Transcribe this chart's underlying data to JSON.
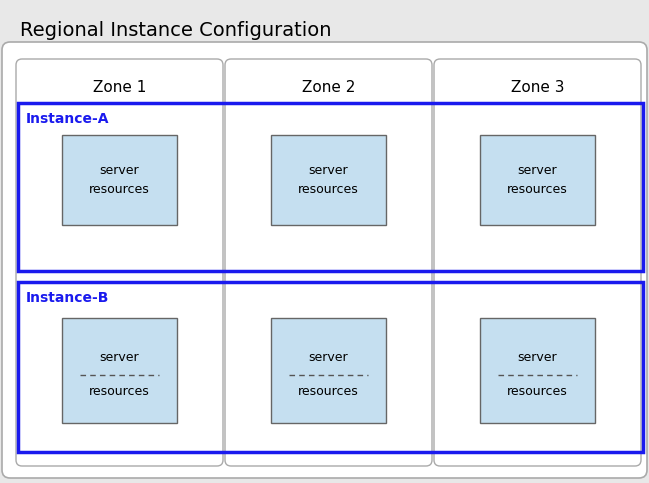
{
  "title": "Regional Instance Configuration",
  "title_fontsize": 14,
  "background_color": "#e8e8e8",
  "outer_box_fill": "#ffffff",
  "outer_box_edge": "#aaaaaa",
  "zone_bg_color": "#f0f0f0",
  "zone_edge_color": "#aaaaaa",
  "zone_labels": [
    "Zone 1",
    "Zone 2",
    "Zone 3"
  ],
  "zone_label_fontsize": 11,
  "instance_box_color": "#1a1aee",
  "instance_label_color": "#1a1aee",
  "instance_label_fontsize": 10,
  "instance_labels": [
    "Instance-A",
    "Instance-B"
  ],
  "server_box_fill": "#c5dff0",
  "server_box_edge": "#666666",
  "server_text_a": "server\nresources",
  "server_text_b_top": "server",
  "server_text_b_bot": "resources",
  "server_fontsize": 9,
  "dashed_line_color": "#555555",
  "fig_width": 6.49,
  "fig_height": 4.83,
  "dpi": 100
}
